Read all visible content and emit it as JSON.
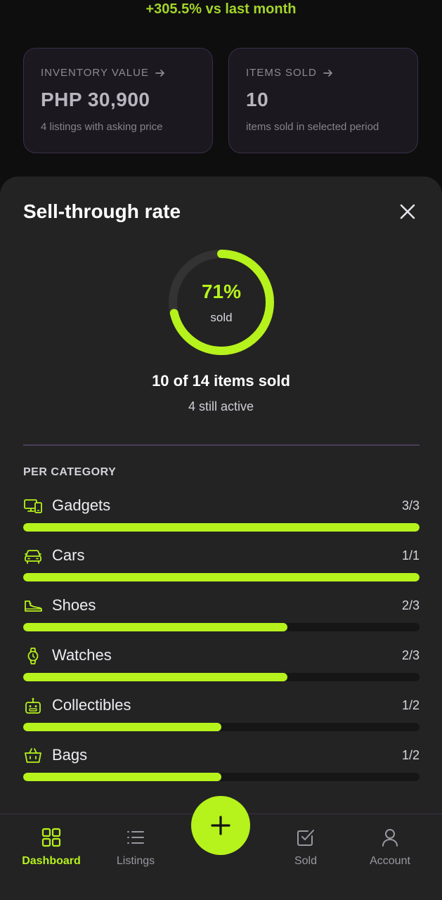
{
  "header": {
    "trend": "+305.5% vs last month"
  },
  "cards": [
    {
      "label": "INVENTORY VALUE",
      "value": "PHP 30,900",
      "sub": "4 listings with asking price"
    },
    {
      "label": "ITEMS SOLD",
      "value": "10",
      "sub": "items sold in selected period"
    }
  ],
  "sheet": {
    "title": "Sell-through rate",
    "ring": {
      "percent_label": "71%",
      "sub": "sold",
      "fraction": 0.714
    },
    "summary": "10 of 14 items sold",
    "summary_sub": "4 still active",
    "section_label": "PER CATEGORY",
    "categories": [
      {
        "name": "Gadgets",
        "count": "3/3",
        "sold": 3,
        "total": 3,
        "icon": "devices-icon"
      },
      {
        "name": "Cars",
        "count": "1/1",
        "sold": 1,
        "total": 1,
        "icon": "car-icon"
      },
      {
        "name": "Shoes",
        "count": "2/3",
        "sold": 2,
        "total": 3,
        "icon": "shoe-icon"
      },
      {
        "name": "Watches",
        "count": "2/3",
        "sold": 2,
        "total": 3,
        "icon": "watch-icon"
      },
      {
        "name": "Collectibles",
        "count": "1/2",
        "sold": 1,
        "total": 2,
        "icon": "robot-icon"
      },
      {
        "name": "Bags",
        "count": "1/2",
        "sold": 1,
        "total": 2,
        "icon": "bag-icon"
      }
    ]
  },
  "nav": {
    "dashboard": "Dashboard",
    "listings": "Listings",
    "sold": "Sold",
    "account": "Account"
  },
  "colors": {
    "accent": "#b6f21c",
    "trend": "#a3d42a",
    "sheet": "#232323",
    "background": "#0e0e0e"
  }
}
